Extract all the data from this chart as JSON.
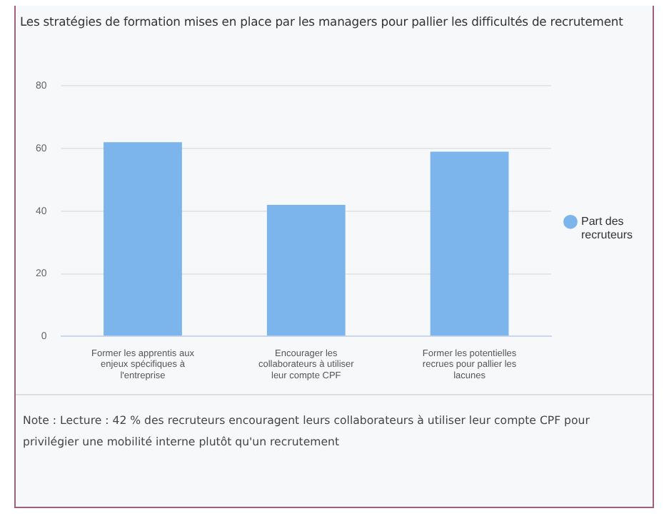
{
  "chart_data": {
    "type": "bar",
    "title": "Les stratégies de formation mises en place par les managers pour pallier les difficultés de recrutement",
    "categories": [
      "Former les apprentis aux enjeux spécifiques à l'entreprise",
      "Encourager les collaborateurs à utiliser leur compte CPF",
      "Former les potentielles recrues pour pallier les lacunes"
    ],
    "series": [
      {
        "name": "Part des recruteurs",
        "color": "#7cb5ec",
        "values": [
          62,
          42,
          59
        ]
      }
    ],
    "ylim": [
      0,
      80
    ],
    "yticks": [
      0,
      20,
      40,
      60,
      80
    ],
    "grid": "y",
    "legend": "right",
    "annotations": [
      "Note : Lecture : 42 % des recruteurs encouragent leurs collaborateurs à utiliser leur compte CPF pour privilégier une mobilité interne plutôt qu'un recrutement"
    ]
  }
}
